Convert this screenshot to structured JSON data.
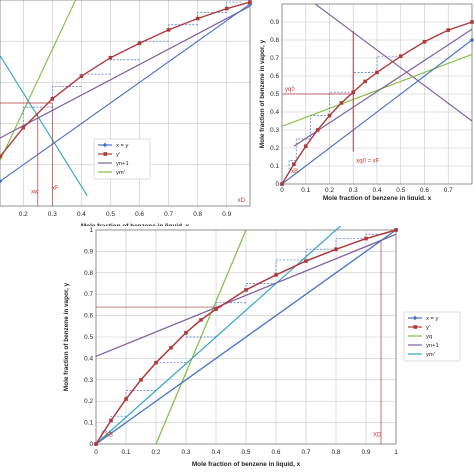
{
  "colors": {
    "xy": "#4472c4",
    "eq": "#b03a3a",
    "q": "#7fbf3f",
    "rect": "#8060a0",
    "strip": "#31a5c8",
    "step": "#4472c4",
    "marker": "#c0392b",
    "grid": "#c8c8c8"
  },
  "panels": {
    "a": {
      "xlabel": "Mole fraction of benzene in liquid, x",
      "xticks": [
        "0.2",
        "0.3",
        "0.4",
        "0.5",
        "0.6",
        "0.7",
        "0.8",
        "0.9"
      ],
      "annotations": {
        "xw": "xw",
        "xf": "xF",
        "xd": "xD"
      },
      "legend": [
        "x = y",
        "y'",
        "yn+1",
        "ym'"
      ]
    },
    "b": {
      "ylabel": "Mole fraction of benzene in vapor, y",
      "xlabel": "Mole fraction of benzene in liquid, x",
      "xticks": [
        "0",
        "0.1",
        "0.2",
        "0.3",
        "0.4",
        "0.5",
        "0.6",
        "0.7"
      ],
      "yticks": [
        "0.9",
        "0.8",
        "0.7",
        "0.6",
        "0.5",
        "0.4",
        "0.3",
        "0.2",
        "0.1",
        "0"
      ],
      "annotations": {
        "yq": "yq0",
        "xq": "xq0 = xF",
        "xb": "xB"
      }
    },
    "c": {
      "ylabel": "Mole fraction of benzene in vapor, y",
      "xlabel": "Mole fraction of benzene in liquid, x",
      "xticks": [
        "0",
        "0.1",
        "0.2",
        "0.3",
        "0.4",
        "0.5",
        "0.6",
        "0.7",
        "0.8",
        "0.9",
        "1"
      ],
      "yticks": [
        "1",
        "0.9",
        "0.8",
        "0.7",
        "0.6",
        "0.5",
        "0.4",
        "0.3",
        "0.2",
        "0.1",
        "0"
      ],
      "annotations": {
        "xb": "XB",
        "xd": "XD"
      },
      "legend": [
        "x = y",
        "y'",
        "yq",
        "yn+1",
        "ym'"
      ]
    }
  },
  "chart_data": [
    {
      "type": "line",
      "panel": "a",
      "xlabel": "Mole fraction of benzene in liquid, x",
      "xlim": [
        0.12,
        0.98
      ],
      "ylim": [
        0.0,
        1.0
      ],
      "series": [
        {
          "name": "x = y",
          "x": [
            0.12,
            0.98
          ],
          "y": [
            0.12,
            0.98
          ]
        },
        {
          "name": "y'",
          "x": [
            0.12,
            0.2,
            0.3,
            0.4,
            0.5,
            0.6,
            0.7,
            0.8,
            0.9,
            0.98
          ],
          "y": [
            0.24,
            0.38,
            0.52,
            0.63,
            0.72,
            0.79,
            0.855,
            0.91,
            0.958,
            0.99
          ]
        },
        {
          "name": "yn+1",
          "x": [
            0.12,
            0.98
          ],
          "y": [
            0.33,
            0.97
          ]
        },
        {
          "name": "ym'",
          "x": [
            0.12,
            0.42
          ],
          "y": [
            0.73,
            0.05
          ]
        }
      ],
      "feed_line": {
        "x": [
          0.12,
          0.38
        ],
        "y": [
          0.22,
          1.0
        ]
      },
      "xw": 0.25,
      "xf": 0.3,
      "xd": 0.95
    },
    {
      "type": "line",
      "panel": "b",
      "xlabel": "Mole fraction of benzene in liquid, x",
      "ylabel": "Mole fraction of benzene in vapor, y",
      "xlim": [
        0.0,
        0.8
      ],
      "ylim": [
        0.0,
        1.0
      ],
      "series": [
        {
          "name": "x = y",
          "x": [
            0,
            0.8
          ],
          "y": [
            0,
            0.8
          ]
        },
        {
          "name": "y'",
          "x": [
            0,
            0.05,
            0.1,
            0.15,
            0.2,
            0.25,
            0.3,
            0.35,
            0.4,
            0.5,
            0.6,
            0.7,
            0.8
          ],
          "y": [
            0,
            0.11,
            0.21,
            0.3,
            0.38,
            0.45,
            0.51,
            0.57,
            0.62,
            0.71,
            0.79,
            0.855,
            0.9
          ]
        },
        {
          "name": "yn+1",
          "x": [
            0.05,
            0.8
          ],
          "y": [
            0.21,
            0.86
          ]
        },
        {
          "name": "ym'",
          "x": [
            0,
            0.8
          ],
          "y": [
            0.32,
            0.72
          ]
        }
      ],
      "xq0": 0.3,
      "yq0": 0.5,
      "xb": 0.03
    },
    {
      "type": "line",
      "panel": "c",
      "xlabel": "Mole fraction of benzene in liquid, x",
      "ylabel": "Mole fraction of benzene in vapor, y",
      "xlim": [
        0.0,
        1.0
      ],
      "ylim": [
        0.0,
        1.0
      ],
      "series": [
        {
          "name": "x = y",
          "x": [
            0,
            1
          ],
          "y": [
            0,
            1
          ]
        },
        {
          "name": "y'",
          "x": [
            0,
            0.05,
            0.1,
            0.15,
            0.2,
            0.25,
            0.3,
            0.35,
            0.4,
            0.5,
            0.6,
            0.7,
            0.8,
            0.9,
            1.0
          ],
          "y": [
            0,
            0.11,
            0.21,
            0.3,
            0.38,
            0.45,
            0.52,
            0.58,
            0.63,
            0.72,
            0.79,
            0.855,
            0.91,
            0.96,
            1.0
          ]
        },
        {
          "name": "yq",
          "x": [
            0.2,
            0.5
          ],
          "y": [
            0.0,
            1.0
          ]
        },
        {
          "name": "yn+1",
          "x": [
            0,
            1
          ],
          "y": [
            0.41,
            0.98
          ]
        },
        {
          "name": "ym'",
          "x": [
            0,
            1
          ],
          "y": [
            0,
            1.25
          ]
        }
      ],
      "xb": 0.02,
      "xd": 0.95,
      "y_intersect": 0.64
    }
  ]
}
